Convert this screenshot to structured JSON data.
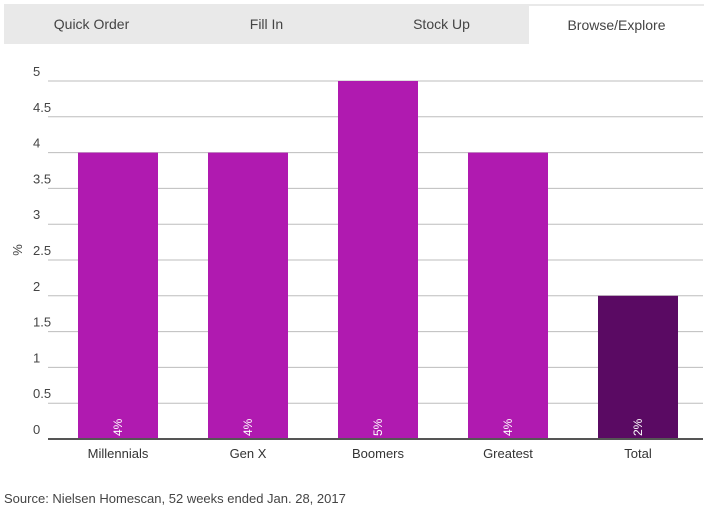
{
  "tabs": [
    {
      "label": "Quick Order",
      "active": false
    },
    {
      "label": "Fill In",
      "active": false
    },
    {
      "label": "Stock Up",
      "active": false
    },
    {
      "label": "Browse/Explore",
      "active": true
    }
  ],
  "chart_data": {
    "type": "bar",
    "categories": [
      "Millennials",
      "Gen X",
      "Boomers",
      "Greatest",
      "Total"
    ],
    "values": [
      4,
      4,
      5,
      4,
      2
    ],
    "data_labels": [
      "4%",
      "4%",
      "5%",
      "4%",
      "2%"
    ],
    "ylabel": "%",
    "ylim": [
      0,
      5
    ],
    "yticks": [
      "0",
      "0.5",
      "1",
      "1.5",
      "2",
      "2.5",
      "3",
      "3.5",
      "4",
      "4.5",
      "5"
    ],
    "grid": true,
    "colors": {
      "bar": "#b01ab0",
      "total_bar": "#5a0a63",
      "grid": "#bdbdbd",
      "axis": "#555555"
    }
  },
  "source": "Source: Nielsen Homescan, 52 weeks ended Jan. 28, 2017"
}
